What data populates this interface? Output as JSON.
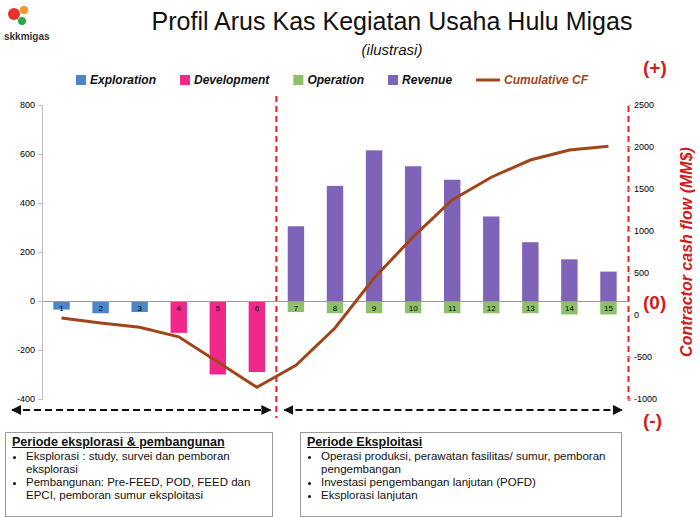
{
  "chart_data": {
    "type": "bar",
    "title": "Profil Arus Kas Kegiatan Usaha Hulu Migas",
    "subtitle": "(ilustrasi)",
    "logo": "skkmigas",
    "y2_label": "Contractor cash flow (MM$)",
    "annotations": [
      "(+)",
      "(0)",
      "(-)"
    ],
    "categories": [
      "1",
      "2",
      "3",
      "4",
      "5",
      "6",
      "7",
      "8",
      "9",
      "10",
      "11",
      "12",
      "13",
      "14",
      "15"
    ],
    "series": [
      {
        "name": "Exploration",
        "color": "#4a86c8",
        "type": "bar",
        "values": [
          -35,
          -50,
          -45,
          null,
          null,
          null,
          null,
          null,
          null,
          null,
          null,
          null,
          null,
          null,
          null
        ]
      },
      {
        "name": "Development",
        "color": "#f0288c",
        "type": "bar",
        "values": [
          null,
          null,
          null,
          -130,
          -300,
          -290,
          null,
          null,
          null,
          null,
          null,
          null,
          null,
          null,
          null
        ]
      },
      {
        "name": "Operation",
        "color": "#8dc06a",
        "type": "bar",
        "values": [
          null,
          null,
          null,
          null,
          null,
          null,
          -45,
          -50,
          -50,
          -50,
          -50,
          -50,
          -50,
          -55,
          -55
        ]
      },
      {
        "name": "Revenue",
        "color": "#7f63b8",
        "type": "bar",
        "values": [
          null,
          null,
          null,
          null,
          null,
          null,
          305,
          470,
          615,
          550,
          495,
          345,
          240,
          170,
          120
        ]
      },
      {
        "name": "Cumulative CF",
        "color": "#a0451a",
        "type": "line",
        "axis": "y2",
        "values": [
          -35,
          -95,
          -145,
          -260,
          -560,
          -860,
          -600,
          -155,
          440,
          930,
          1370,
          1640,
          1845,
          1965,
          2010
        ]
      }
    ],
    "ylim": [
      -400,
      800
    ],
    "yticks": [
      -400,
      -200,
      0,
      200,
      400,
      600,
      800
    ],
    "y2lim": [
      -1000,
      2500
    ],
    "y2ticks": [
      -1000,
      -500,
      0,
      500,
      1000,
      1500,
      2000,
      2500
    ],
    "grid": false,
    "periods": [
      {
        "title": "Periode eksplorasi & pembangunan",
        "items": [
          "Eksplorasi : study, survei dan pemboran eksplorasi",
          "Pembangunan: Pre-FEED, POD, FEED dan EPCI, pemboran sumur eksploitasi"
        ]
      },
      {
        "title": "Periode Eksploitasi",
        "items": [
          "Operasi produksi, perawatan fasilitas/ sumur, pemboran pengembangan",
          "Investasi pengembangan lanjutan (POFD)",
          "Eksplorasi lanjutan"
        ]
      }
    ]
  }
}
